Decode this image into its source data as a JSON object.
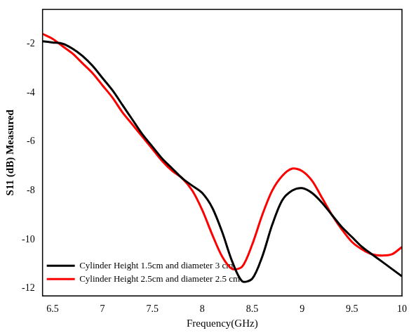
{
  "chart_data": {
    "type": "line",
    "x_label": "Frequency(GHz)",
    "y_label": "S11 (dB) Measured",
    "x": [
      6.4,
      6.5,
      6.6,
      6.7,
      6.8,
      6.9,
      7.0,
      7.1,
      7.2,
      7.3,
      7.4,
      7.5,
      7.6,
      7.7,
      7.8,
      7.9,
      8.0,
      8.1,
      8.2,
      8.3,
      8.4,
      8.5,
      8.6,
      8.7,
      8.8,
      8.9,
      9.0,
      9.1,
      9.2,
      9.3,
      9.4,
      9.5,
      9.6,
      9.7,
      9.8,
      9.9,
      10.0
    ],
    "series": [
      {
        "name": "Cylinder Height 1.5cm and diameter 3 cm",
        "color": "#000000",
        "values": [
          -1.9,
          -1.95,
          -2.0,
          -2.2,
          -2.5,
          -2.9,
          -3.4,
          -3.9,
          -4.5,
          -5.1,
          -5.7,
          -6.2,
          -6.7,
          -7.1,
          -7.5,
          -7.8,
          -8.1,
          -8.7,
          -9.7,
          -10.9,
          -11.7,
          -11.6,
          -10.7,
          -9.4,
          -8.4,
          -8.0,
          -7.9,
          -8.1,
          -8.5,
          -9.0,
          -9.5,
          -9.9,
          -10.3,
          -10.6,
          -10.9,
          -11.2,
          -11.5
        ]
      },
      {
        "name": "Cylinder Height 2.5cm and diameter 2.5 cm",
        "color": "#ff0000",
        "values": [
          -1.6,
          -1.8,
          -2.1,
          -2.4,
          -2.8,
          -3.2,
          -3.7,
          -4.2,
          -4.8,
          -5.3,
          -5.8,
          -6.3,
          -6.8,
          -7.2,
          -7.5,
          -8.0,
          -8.8,
          -9.8,
          -10.7,
          -11.2,
          -11.1,
          -10.2,
          -9.0,
          -8.0,
          -7.4,
          -7.1,
          -7.2,
          -7.6,
          -8.3,
          -9.0,
          -9.6,
          -10.1,
          -10.4,
          -10.6,
          -10.65,
          -10.6,
          -10.3
        ]
      }
    ],
    "xlim": [
      6.4,
      10
    ],
    "xticks": [
      6.5,
      7,
      7.5,
      8,
      8.5,
      9,
      9.5,
      10
    ],
    "ylim": [
      -12.3,
      -0.6
    ],
    "yticks": [
      -12,
      -10,
      -8,
      -6,
      -4,
      -2
    ],
    "grid": false,
    "legend": "upper right"
  }
}
